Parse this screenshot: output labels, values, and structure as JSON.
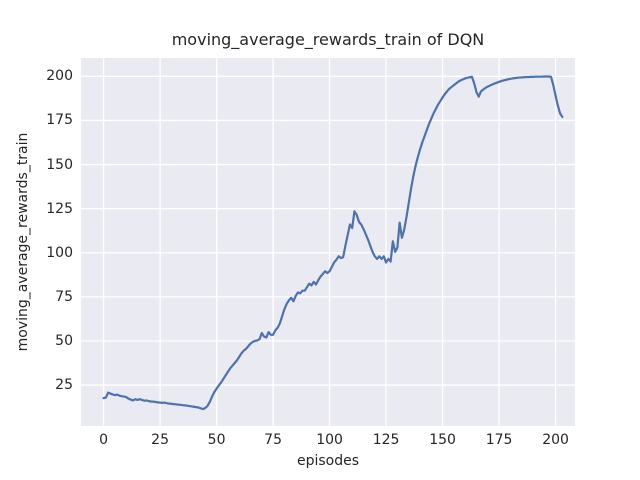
{
  "chart_data": {
    "type": "line",
    "title": "moving_average_rewards_train of DQN",
    "xlabel": "episodes",
    "ylabel": "moving_average_rewards_train",
    "grid": true,
    "legend": "none",
    "plot_bg_color": "#eaeaf2",
    "grid_color": "#ffffff",
    "text_color": "#262626",
    "line_color": "#4c72b0",
    "xticks": [
      0,
      25,
      50,
      75,
      100,
      125,
      150,
      175,
      200
    ],
    "yticks": [
      25,
      50,
      75,
      100,
      125,
      150,
      175,
      200
    ],
    "xlim": [
      -10.0,
      208.6
    ],
    "ylim": [
      1.8,
      210.4
    ],
    "series": [
      {
        "name": "moving_average_rewards_train",
        "color": "#4c72b0",
        "points": [
          [
            0,
            17.6
          ],
          [
            1,
            17.9
          ],
          [
            2,
            20.7
          ],
          [
            3,
            20.2
          ],
          [
            4,
            19.7
          ],
          [
            5,
            19.3
          ],
          [
            6,
            19.6
          ],
          [
            7,
            19.0
          ],
          [
            8,
            18.7
          ],
          [
            9,
            18.5
          ],
          [
            10,
            18.2
          ],
          [
            11,
            17.3
          ],
          [
            12,
            16.8
          ],
          [
            13,
            16.3
          ],
          [
            14,
            17.0
          ],
          [
            15,
            16.6
          ],
          [
            16,
            17.0
          ],
          [
            17,
            16.6
          ],
          [
            18,
            16.1
          ],
          [
            19,
            16.3
          ],
          [
            20,
            15.9
          ],
          [
            21,
            15.7
          ],
          [
            22,
            15.6
          ],
          [
            23,
            15.4
          ],
          [
            24,
            15.2
          ],
          [
            25,
            15.1
          ],
          [
            26,
            14.9
          ],
          [
            27,
            15.1
          ],
          [
            28,
            14.7
          ],
          [
            29,
            14.5
          ],
          [
            30,
            14.4
          ],
          [
            31,
            14.2
          ],
          [
            32,
            14.1
          ],
          [
            33,
            13.9
          ],
          [
            34,
            13.8
          ],
          [
            35,
            13.6
          ],
          [
            36,
            13.5
          ],
          [
            37,
            13.3
          ],
          [
            38,
            13.1
          ],
          [
            39,
            12.9
          ],
          [
            40,
            12.7
          ],
          [
            41,
            12.5
          ],
          [
            42,
            12.3
          ],
          [
            43,
            11.8
          ],
          [
            44,
            11.4
          ],
          [
            45,
            12.0
          ],
          [
            46,
            13.2
          ],
          [
            47,
            15.5
          ],
          [
            48,
            18.5
          ],
          [
            49,
            21.0
          ],
          [
            50,
            23.0
          ],
          [
            51,
            24.8
          ],
          [
            52,
            26.5
          ],
          [
            53,
            28.5
          ],
          [
            54,
            30.5
          ],
          [
            55,
            32.5
          ],
          [
            56,
            34.5
          ],
          [
            57,
            36.0
          ],
          [
            58,
            37.5
          ],
          [
            59,
            39.0
          ],
          [
            60,
            41.0
          ],
          [
            61,
            43.0
          ],
          [
            62,
            44.5
          ],
          [
            63,
            45.5
          ],
          [
            64,
            47.0
          ],
          [
            65,
            48.5
          ],
          [
            66,
            49.5
          ],
          [
            67,
            50.0
          ],
          [
            68,
            50.3
          ],
          [
            69,
            51.0
          ],
          [
            70,
            54.5
          ],
          [
            71,
            52.5
          ],
          [
            72,
            52.0
          ],
          [
            73,
            55.0
          ],
          [
            74,
            53.5
          ],
          [
            75,
            53.5
          ],
          [
            76,
            56.0
          ],
          [
            77,
            57.5
          ],
          [
            78,
            60.0
          ],
          [
            79,
            64.0
          ],
          [
            80,
            68.0
          ],
          [
            81,
            71.0
          ],
          [
            82,
            73.0
          ],
          [
            83,
            74.5
          ],
          [
            84,
            72.5
          ],
          [
            85,
            75.5
          ],
          [
            86,
            77.5
          ],
          [
            87,
            77.0
          ],
          [
            88,
            78.5
          ],
          [
            89,
            78.5
          ],
          [
            90,
            80.5
          ],
          [
            91,
            82.5
          ],
          [
            92,
            81.5
          ],
          [
            93,
            83.5
          ],
          [
            94,
            82.0
          ],
          [
            95,
            84.5
          ],
          [
            96,
            86.5
          ],
          [
            97,
            88.0
          ],
          [
            98,
            89.5
          ],
          [
            99,
            88.5
          ],
          [
            100,
            89.5
          ],
          [
            101,
            92.0
          ],
          [
            102,
            94.5
          ],
          [
            103,
            96.0
          ],
          [
            104,
            98.0
          ],
          [
            105,
            97.0
          ],
          [
            106,
            97.5
          ],
          [
            107,
            104.0
          ],
          [
            108,
            110.0
          ],
          [
            109,
            116.0
          ],
          [
            110,
            114.0
          ],
          [
            111,
            123.5
          ],
          [
            112,
            121.5
          ],
          [
            113,
            117.5
          ],
          [
            114,
            116.0
          ],
          [
            115,
            113.5
          ],
          [
            116,
            110.5
          ],
          [
            117,
            107.5
          ],
          [
            118,
            104.0
          ],
          [
            119,
            100.5
          ],
          [
            120,
            98.0
          ],
          [
            121,
            96.5
          ],
          [
            122,
            98.0
          ],
          [
            123,
            96.5
          ],
          [
            124,
            98.0
          ],
          [
            125,
            94.5
          ],
          [
            126,
            96.5
          ],
          [
            127,
            95.0
          ],
          [
            128,
            106.5
          ],
          [
            129,
            100.5
          ],
          [
            130,
            103.0
          ],
          [
            131,
            117.0
          ],
          [
            132,
            108.5
          ],
          [
            133,
            113.0
          ],
          [
            134,
            120.0
          ],
          [
            135,
            128.0
          ],
          [
            136,
            136.0
          ],
          [
            137,
            143.0
          ],
          [
            138,
            149.0
          ],
          [
            139,
            154.0
          ],
          [
            140,
            158.5
          ],
          [
            141,
            162.5
          ],
          [
            142,
            166.0
          ],
          [
            143,
            169.5
          ],
          [
            144,
            173.0
          ],
          [
            145,
            176.0
          ],
          [
            146,
            179.0
          ],
          [
            147,
            181.5
          ],
          [
            148,
            184.0
          ],
          [
            149,
            186.0
          ],
          [
            150,
            188.0
          ],
          [
            151,
            190.0
          ],
          [
            152,
            191.5
          ],
          [
            153,
            193.0
          ],
          [
            154,
            194.0
          ],
          [
            155,
            195.0
          ],
          [
            156,
            196.0
          ],
          [
            157,
            197.0
          ],
          [
            158,
            197.7
          ],
          [
            159,
            198.3
          ],
          [
            160,
            198.8
          ],
          [
            161,
            199.2
          ],
          [
            162,
            199.5
          ],
          [
            163,
            199.7
          ],
          [
            164,
            196.0
          ],
          [
            165,
            191.0
          ],
          [
            166,
            188.5
          ],
          [
            167,
            191.5
          ],
          [
            168,
            192.5
          ],
          [
            169,
            193.5
          ],
          [
            170,
            194.2
          ],
          [
            171,
            194.8
          ],
          [
            172,
            195.4
          ],
          [
            173,
            195.9
          ],
          [
            174,
            196.4
          ],
          [
            175,
            196.9
          ],
          [
            176,
            197.3
          ],
          [
            177,
            197.7
          ],
          [
            178,
            198.0
          ],
          [
            179,
            198.3
          ],
          [
            180,
            198.6
          ],
          [
            181,
            198.8
          ],
          [
            182,
            199.0
          ],
          [
            183,
            199.2
          ],
          [
            184,
            199.3
          ],
          [
            185,
            199.4
          ],
          [
            186,
            199.5
          ],
          [
            187,
            199.6
          ],
          [
            188,
            199.6
          ],
          [
            189,
            199.7
          ],
          [
            190,
            199.7
          ],
          [
            191,
            199.8
          ],
          [
            192,
            199.8
          ],
          [
            193,
            199.8
          ],
          [
            194,
            199.8
          ],
          [
            195,
            199.9
          ],
          [
            196,
            199.9
          ],
          [
            197,
            199.9
          ],
          [
            198,
            199.7
          ],
          [
            199,
            195.0
          ],
          [
            200,
            189.0
          ],
          [
            201,
            183.5
          ],
          [
            202,
            179.0
          ],
          [
            203,
            177.0
          ]
        ]
      }
    ]
  }
}
